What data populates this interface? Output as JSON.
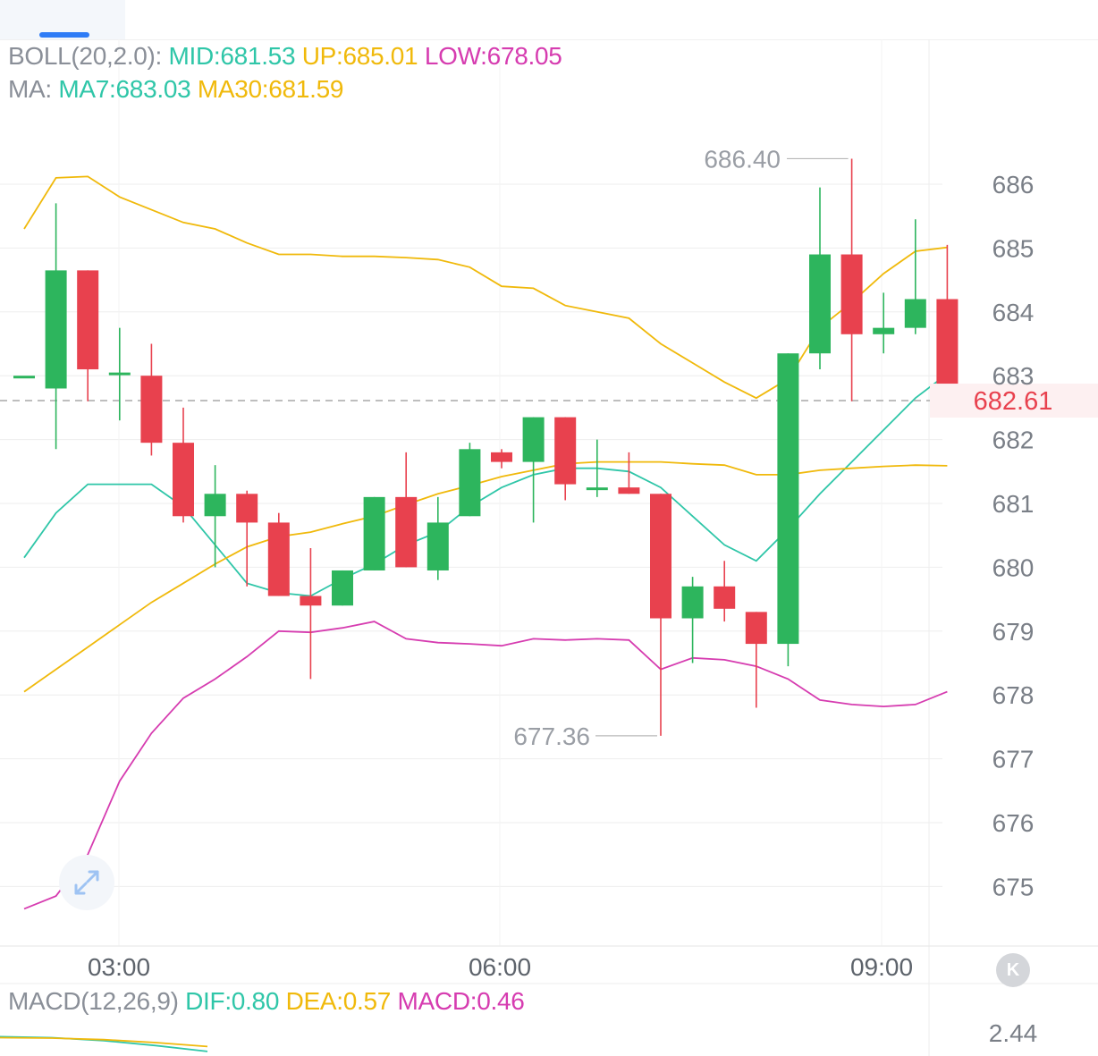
{
  "colors": {
    "up": "#2db55d",
    "down": "#e8414e",
    "mid": "#f0b90b",
    "upper": "#f0b90b",
    "lower": "#d63cb0",
    "ma7": "#2fc6a8",
    "ma30": "#f0b90b",
    "grid": "#eeeeee",
    "axis_text": "#7a7f87",
    "last_price": "#e8414e"
  },
  "legend": {
    "boll": {
      "name": "BOLL(20,2.0):",
      "mid": "MID:681.53",
      "up": "UP:685.01",
      "low": "LOW:678.05"
    },
    "ma": {
      "name": "MA:",
      "ma7": "MA7:683.03",
      "ma30": "MA30:681.59"
    },
    "macd": {
      "name": "MACD(12,26,9)",
      "dif": "DIF:0.80",
      "dea": "DEA:0.57",
      "macd": "MACD:0.46"
    }
  },
  "icons": {
    "expand": "expand-arrows-icon",
    "k": "k-line-icon"
  },
  "chart_data": {
    "type": "candlestick",
    "y_ticks": [
      686,
      685,
      684,
      683,
      682,
      681,
      680,
      679,
      678,
      677,
      676,
      675
    ],
    "x_ticks": [
      "03:00",
      "06:00",
      "09:00"
    ],
    "last_price": "682.61",
    "high_annotation": "686.40",
    "low_annotation": "677.36",
    "macd_tick": "2.44",
    "candles": [
      {
        "o": 683.0,
        "c": 683.0,
        "h": 683.0,
        "l": 683.0
      },
      {
        "o": 682.8,
        "c": 684.65,
        "h": 685.7,
        "l": 681.85
      },
      {
        "o": 684.65,
        "c": 683.1,
        "h": 684.65,
        "l": 682.6
      },
      {
        "o": 683.05,
        "c": 683.05,
        "h": 683.75,
        "l": 682.3
      },
      {
        "o": 683.0,
        "c": 681.95,
        "h": 683.5,
        "l": 681.75
      },
      {
        "o": 681.95,
        "c": 680.8,
        "h": 682.5,
        "l": 680.7
      },
      {
        "o": 680.8,
        "c": 681.15,
        "h": 681.6,
        "l": 680.0
      },
      {
        "o": 681.15,
        "c": 680.7,
        "h": 681.2,
        "l": 679.7
      },
      {
        "o": 680.7,
        "c": 679.55,
        "h": 680.85,
        "l": 679.55
      },
      {
        "o": 679.55,
        "c": 679.4,
        "h": 680.3,
        "l": 678.25
      },
      {
        "o": 679.4,
        "c": 679.95,
        "h": 679.95,
        "l": 679.4
      },
      {
        "o": 679.95,
        "c": 681.1,
        "h": 681.1,
        "l": 679.95
      },
      {
        "o": 681.1,
        "c": 680.0,
        "h": 681.8,
        "l": 680.0
      },
      {
        "o": 679.95,
        "c": 680.7,
        "h": 681.1,
        "l": 679.8
      },
      {
        "o": 680.8,
        "c": 681.85,
        "h": 681.95,
        "l": 680.8
      },
      {
        "o": 681.8,
        "c": 681.65,
        "h": 681.85,
        "l": 681.55
      },
      {
        "o": 681.65,
        "c": 682.35,
        "h": 682.35,
        "l": 680.7
      },
      {
        "o": 682.35,
        "c": 681.3,
        "h": 682.35,
        "l": 681.05
      },
      {
        "o": 681.25,
        "c": 681.25,
        "h": 682.0,
        "l": 681.1
      },
      {
        "o": 681.25,
        "c": 681.15,
        "h": 681.8,
        "l": 681.15
      },
      {
        "o": 681.15,
        "c": 679.2,
        "h": 681.15,
        "l": 677.36
      },
      {
        "o": 679.2,
        "c": 679.7,
        "h": 679.85,
        "l": 678.5
      },
      {
        "o": 679.7,
        "c": 679.35,
        "h": 680.1,
        "l": 679.15
      },
      {
        "o": 679.3,
        "c": 678.8,
        "h": 679.3,
        "l": 677.8
      },
      {
        "o": 678.8,
        "c": 683.35,
        "h": 683.35,
        "l": 678.45
      },
      {
        "o": 683.35,
        "c": 684.9,
        "h": 685.95,
        "l": 683.1
      },
      {
        "o": 684.9,
        "c": 683.65,
        "h": 686.4,
        "l": 682.6
      },
      {
        "o": 683.65,
        "c": 683.75,
        "h": 684.3,
        "l": 683.35
      },
      {
        "o": 683.75,
        "c": 684.2,
        "h": 685.45,
        "l": 683.65
      },
      {
        "o": 684.2,
        "c": 682.61,
        "h": 685.05,
        "l": 682.61
      }
    ],
    "upper_band": [
      685.3,
      686.1,
      686.12,
      685.8,
      685.6,
      685.4,
      685.3,
      685.08,
      684.9,
      684.9,
      684.87,
      684.87,
      684.85,
      684.82,
      684.7,
      684.4,
      684.37,
      684.1,
      684.0,
      683.9,
      683.5,
      683.2,
      682.9,
      682.65,
      682.95,
      683.75,
      684.15,
      684.6,
      684.95,
      685.01
    ],
    "lower_band": [
      674.65,
      674.85,
      675.5,
      676.65,
      677.4,
      677.95,
      678.25,
      678.6,
      679.0,
      678.98,
      679.05,
      679.15,
      678.88,
      678.82,
      678.8,
      678.77,
      678.88,
      678.86,
      678.88,
      678.86,
      678.4,
      678.58,
      678.55,
      678.45,
      678.25,
      677.92,
      677.85,
      677.82,
      677.85,
      678.05
    ],
    "ma7": [
      680.15,
      680.85,
      681.3,
      681.3,
      681.3,
      680.95,
      680.35,
      679.75,
      679.6,
      679.55,
      679.82,
      680.05,
      680.35,
      680.55,
      680.95,
      681.25,
      681.45,
      681.55,
      681.55,
      681.5,
      681.25,
      680.8,
      680.35,
      680.1,
      680.6,
      681.15,
      681.65,
      682.15,
      682.65,
      683.03
    ],
    "ma30": [
      678.05,
      678.4,
      678.75,
      679.1,
      679.45,
      679.75,
      680.05,
      680.32,
      680.48,
      680.55,
      680.68,
      680.8,
      680.98,
      681.15,
      681.28,
      681.42,
      681.52,
      681.62,
      681.65,
      681.65,
      681.65,
      681.62,
      681.6,
      681.45,
      681.45,
      681.52,
      681.55,
      681.58,
      681.6,
      681.59
    ],
    "macd_series": [
      {
        "name": "DIF",
        "values": [
          2.36,
          2.34,
          2.28,
          2.18,
          2.06
        ]
      },
      {
        "name": "DEA",
        "values": [
          2.34,
          2.33,
          2.3,
          2.24,
          2.16
        ]
      }
    ]
  }
}
